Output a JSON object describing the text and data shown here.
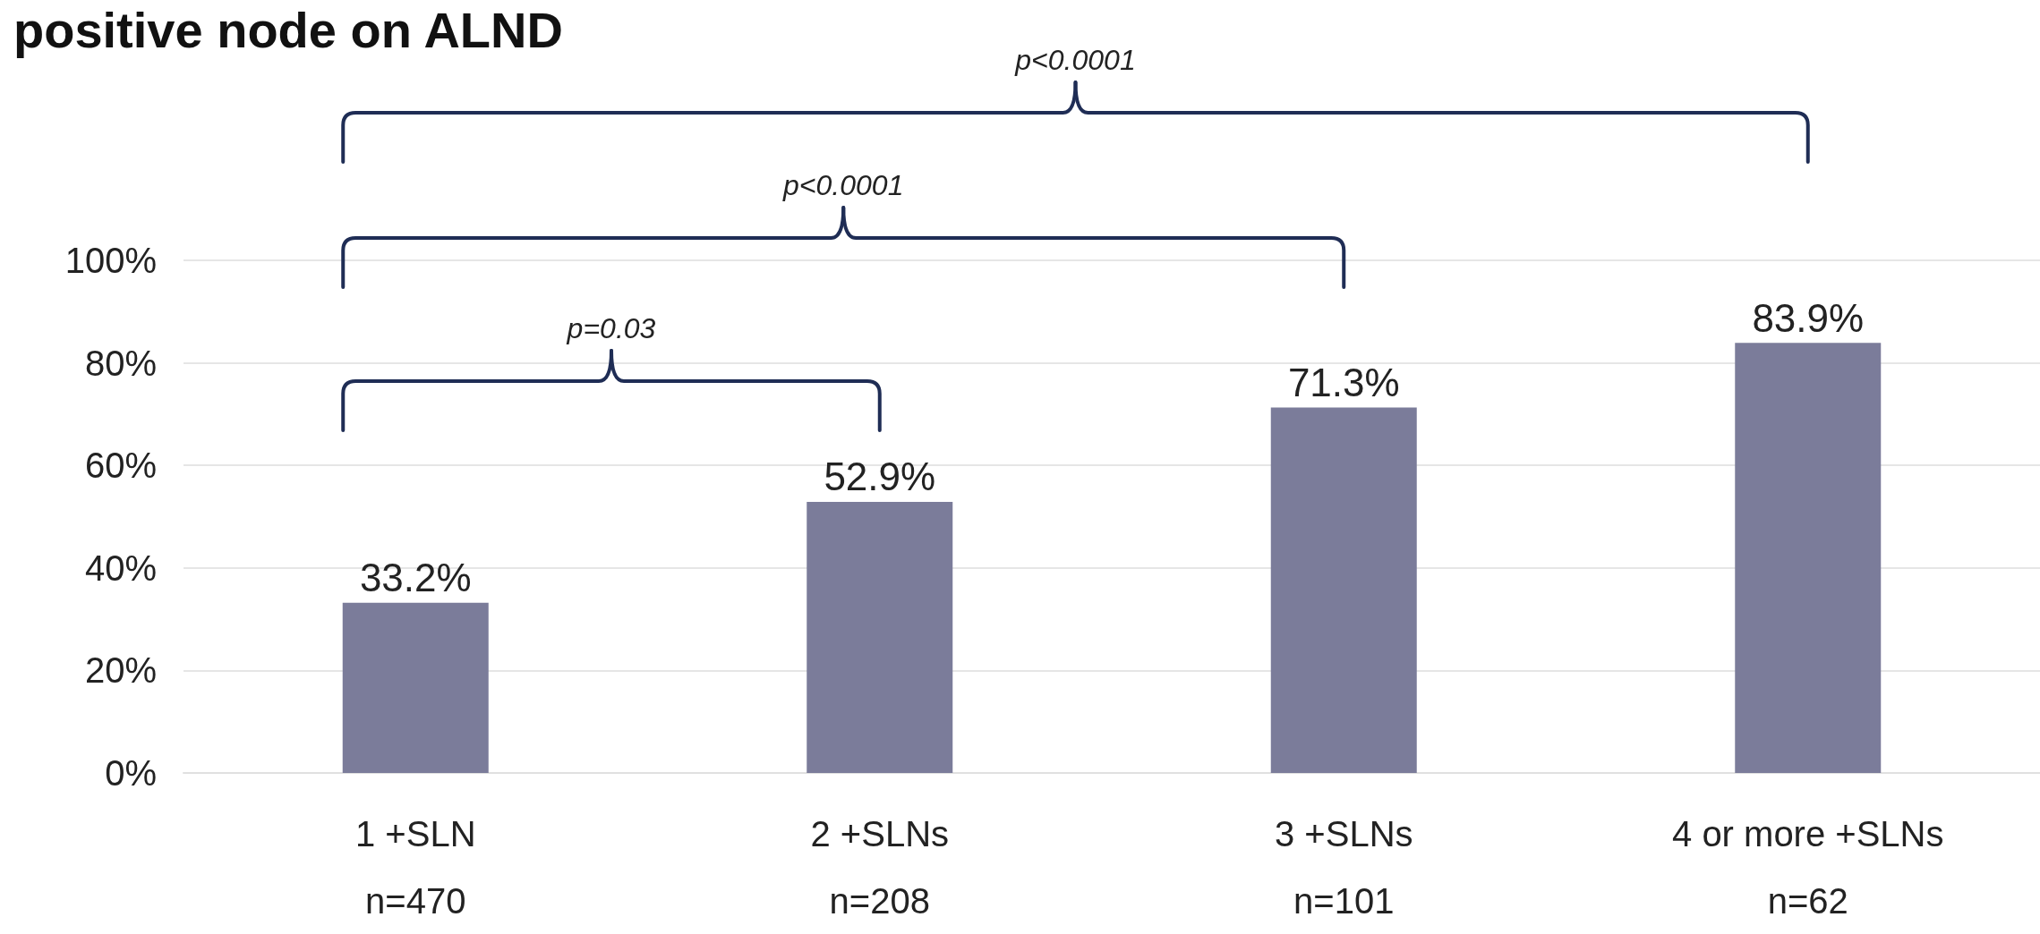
{
  "chart_data": {
    "type": "bar",
    "title": "positive node on ALND",
    "categories": [
      "1 +SLN\nn=470",
      "2 +SLNs\nn=208",
      "3 +SLNs\nn=101",
      "4 or more +SLNs\nn=62"
    ],
    "values": [
      33.2,
      52.9,
      71.3,
      83.9
    ],
    "value_labels": [
      "33.2%",
      "52.9%",
      "71.3%",
      "83.9%"
    ],
    "color": "#7b7c9a",
    "ylim": [
      0,
      100
    ],
    "yticks": [
      {
        "value": 0,
        "label": "0%"
      },
      {
        "value": 20,
        "label": "20%"
      },
      {
        "value": 40,
        "label": "40%"
      },
      {
        "value": 60,
        "label": "60%"
      },
      {
        "value": 80,
        "label": "80%"
      },
      {
        "value": 100,
        "label": "100%"
      }
    ],
    "grid": "y",
    "annotations": [
      "p=0.03",
      "p<0.0001",
      "p<0.0001"
    ]
  }
}
